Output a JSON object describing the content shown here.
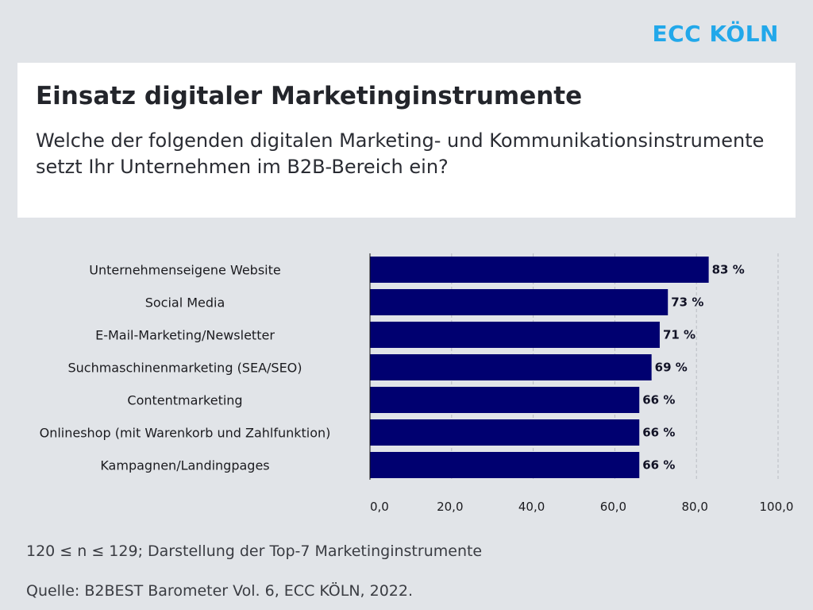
{
  "brand": {
    "logo_text": "ECC KÖLN",
    "color": "#22a8ea"
  },
  "header": {
    "title": "Einsatz digitaler Marketinginstrumente",
    "subtitle": "Welche der folgenden digitalen Marketing- und Kommunikationsinstrumente setzt Ihr Unternehmen im B2B-Bereich ein?"
  },
  "chart_data": {
    "type": "bar",
    "orientation": "horizontal",
    "title": "Einsatz digitaler Marketinginstrumente",
    "xlabel": "",
    "ylabel": "",
    "categories": [
      "Unternehmenseigene Website",
      "Social Media",
      "E-Mail-Marketing/Newsletter",
      "Suchmaschinenmarketing (SEA/SEO)",
      "Contentmarketing",
      "Onlineshop (mit Warenkorb und Zahlfunktion)",
      "Kampagnen/Landingpages"
    ],
    "values": [
      83,
      73,
      71,
      69,
      66,
      66,
      66
    ],
    "value_labels": [
      "83 %",
      "73 %",
      "71 %",
      "69 %",
      "66 %",
      "66 %",
      "66 %"
    ],
    "unit": "%",
    "xlim": [
      0,
      100
    ],
    "ticks": [
      0,
      20,
      40,
      60,
      80,
      100
    ],
    "tick_labels": [
      "0,0",
      "20,0",
      "40,0",
      "60,0",
      "80,0",
      "100,0"
    ],
    "grid": true,
    "grid_style": "dashed vertical",
    "legend": "none",
    "bar_color": "#000070"
  },
  "footer": {
    "sample_note": "120 ≤ n ≤ 129; Darstellung der Top-7 Marketinginstrumente",
    "source": "Quelle: B2BEST Barometer Vol. 6, ECC KÖLN, 2022."
  }
}
